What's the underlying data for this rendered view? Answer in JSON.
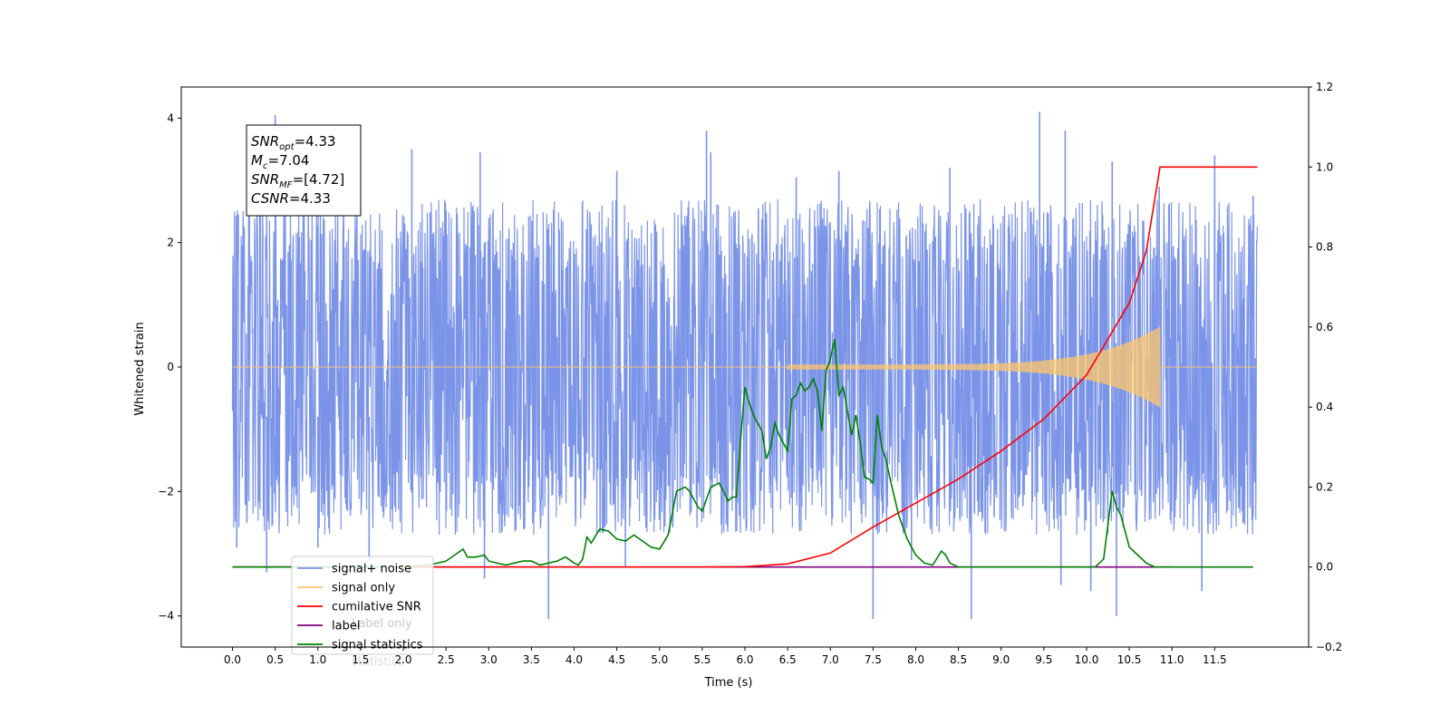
{
  "chart_data": {
    "type": "line",
    "xlabel": "Time (s)",
    "ylabel": "Whitened strain",
    "xlim": [
      -0.6,
      12.6
    ],
    "ylim": [
      -4.5,
      4.5
    ],
    "ylim_right": [
      -0.2,
      1.2
    ],
    "xticks": [
      "0.0",
      "0.5",
      "1.0",
      "1.5",
      "2.0",
      "2.5",
      "3.0",
      "3.5",
      "4.0",
      "4.5",
      "5.0",
      "5.5",
      "6.0",
      "6.5",
      "7.0",
      "7.5",
      "8.0",
      "8.5",
      "9.0",
      "9.5",
      "10.0",
      "10.5",
      "11.0",
      "11.5"
    ],
    "yticks_left": [
      "4",
      "2",
      "0",
      "−2",
      "−4"
    ],
    "yticks_right": [
      "1.2",
      "1.0",
      "0.8",
      "0.6",
      "0.4",
      "0.2",
      "0.0",
      "−0.2"
    ],
    "grid": false,
    "legend_position": "lower-left",
    "annotation": {
      "lines": [
        {
          "name": "SNR",
          "sub": "opt",
          "value": "=4.33"
        },
        {
          "name": "M",
          "sub": "c",
          "value": "=7.04"
        },
        {
          "name": "SNR",
          "sub": "MF",
          "value": "=[4.72]"
        },
        {
          "name": "CSNR",
          "sub": "",
          "value": "=4.33"
        }
      ]
    },
    "series": [
      {
        "name": "signal+ noise",
        "color": "#7b94e8",
        "axis": "left",
        "x_range": [
          0.0,
          12.0
        ],
        "envelope_peaks": [
          [
            0.05,
            2.15
          ],
          [
            0.5,
            4.05
          ],
          [
            1.3,
            3.25
          ],
          [
            2.1,
            3.5
          ],
          [
            2.9,
            3.45
          ],
          [
            4.5,
            3.15
          ],
          [
            5.55,
            3.8
          ],
          [
            5.6,
            3.45
          ],
          [
            6.6,
            3.05
          ],
          [
            7.1,
            3.15
          ],
          [
            8.4,
            3.2
          ],
          [
            9.45,
            4.1
          ],
          [
            9.75,
            3.8
          ],
          [
            10.3,
            3.3
          ],
          [
            10.85,
            2.9
          ],
          [
            11.5,
            3.4
          ],
          [
            11.95,
            2.75
          ]
        ],
        "envelope_troughs": [
          [
            0.05,
            -2.9
          ],
          [
            0.4,
            -3.3
          ],
          [
            1.0,
            -2.9
          ],
          [
            1.6,
            -3.1
          ],
          [
            2.95,
            -3.4
          ],
          [
            3.7,
            -4.05
          ],
          [
            4.6,
            -3.2
          ],
          [
            7.5,
            -4.05
          ],
          [
            7.95,
            -3.1
          ],
          [
            8.65,
            -4.05
          ],
          [
            9.7,
            -3.5
          ],
          [
            10.05,
            -3.6
          ],
          [
            10.35,
            -4.0
          ],
          [
            11.35,
            -3.6
          ],
          [
            11.95,
            -2.4
          ]
        ]
      },
      {
        "name": "signal only",
        "color": "#ffc76b",
        "axis": "left",
        "chirp_start": 6.5,
        "chirp_end": 10.86,
        "x_range": [
          0.0,
          12.0
        ],
        "peak_amplitude": 0.65
      },
      {
        "name": "cumilative SNR",
        "color": "#ff0000",
        "axis": "right",
        "x": [
          0.0,
          5.5,
          6.0,
          6.5,
          7.0,
          7.5,
          8.0,
          8.5,
          9.0,
          9.5,
          10.0,
          10.5,
          10.7,
          10.86,
          12.0
        ],
        "values": [
          0.0,
          0.0,
          0.001,
          0.008,
          0.035,
          0.1,
          0.16,
          0.22,
          0.29,
          0.37,
          0.48,
          0.66,
          0.79,
          1.0,
          1.0
        ]
      },
      {
        "name": "label",
        "color": "#800080",
        "axis": "right",
        "x": [
          0.0,
          11.0
        ],
        "values": [
          0.0,
          0.0
        ]
      },
      {
        "name": "signal statistics",
        "color": "#008000",
        "axis": "right",
        "x": [
          0.0,
          0.5,
          1.0,
          1.5,
          2.0,
          2.3,
          2.5,
          2.6,
          2.7,
          2.75,
          2.85,
          2.95,
          3.0,
          3.2,
          3.4,
          3.5,
          3.6,
          3.7,
          3.8,
          3.9,
          4.0,
          4.05,
          4.1,
          4.15,
          4.2,
          4.3,
          4.4,
          4.5,
          4.6,
          4.7,
          4.9,
          5.0,
          5.1,
          5.2,
          5.3,
          5.35,
          5.45,
          5.5,
          5.6,
          5.7,
          5.75,
          5.8,
          5.85,
          5.9,
          5.95,
          6.0,
          6.05,
          6.1,
          6.15,
          6.2,
          6.25,
          6.3,
          6.35,
          6.4,
          6.5,
          6.55,
          6.6,
          6.65,
          6.7,
          6.75,
          6.8,
          6.85,
          6.9,
          6.95,
          7.0,
          7.05,
          7.1,
          7.15,
          7.2,
          7.25,
          7.3,
          7.35,
          7.4,
          7.45,
          7.5,
          7.55,
          7.6,
          7.65,
          7.7,
          7.8,
          7.9,
          8.0,
          8.1,
          8.2,
          8.3,
          8.35,
          8.4,
          8.5,
          9.0,
          9.5,
          9.8,
          10.1,
          10.2,
          10.3,
          10.35,
          10.4,
          10.5,
          10.6,
          10.7,
          10.8,
          11.0,
          11.5,
          11.95
        ],
        "values": [
          0.0,
          0.0,
          0.0,
          0.0,
          0.0,
          0.005,
          0.015,
          0.03,
          0.045,
          0.025,
          0.025,
          0.03,
          0.015,
          0.005,
          0.015,
          0.015,
          0.005,
          0.01,
          0.015,
          0.025,
          0.01,
          0.005,
          0.02,
          0.075,
          0.06,
          0.095,
          0.09,
          0.07,
          0.065,
          0.08,
          0.05,
          0.045,
          0.08,
          0.19,
          0.2,
          0.19,
          0.15,
          0.14,
          0.2,
          0.21,
          0.19,
          0.165,
          0.175,
          0.175,
          0.32,
          0.45,
          0.41,
          0.38,
          0.36,
          0.34,
          0.27,
          0.3,
          0.36,
          0.33,
          0.29,
          0.42,
          0.43,
          0.46,
          0.44,
          0.45,
          0.47,
          0.44,
          0.34,
          0.49,
          0.52,
          0.57,
          0.43,
          0.45,
          0.39,
          0.33,
          0.38,
          0.31,
          0.225,
          0.22,
          0.21,
          0.38,
          0.3,
          0.27,
          0.22,
          0.13,
          0.07,
          0.03,
          0.01,
          0.005,
          0.04,
          0.03,
          0.01,
          0.0,
          0.0,
          0.0,
          0.0,
          0.0,
          0.02,
          0.19,
          0.15,
          0.13,
          0.05,
          0.03,
          0.01,
          0.0,
          0.0,
          0.0,
          0.0
        ]
      }
    ],
    "legend": [
      {
        "label": "signal+ noise",
        "color": "#7b94e8"
      },
      {
        "label": "signal only",
        "color": "#ffc76b"
      },
      {
        "label": "cumilative SNR",
        "color": "#ff0000"
      },
      {
        "label": "label",
        "color": "#800080"
      },
      {
        "label": "signal statistics",
        "color": "#008000"
      }
    ],
    "legend_ghost_text": [
      "Label only",
      "statistics"
    ]
  }
}
